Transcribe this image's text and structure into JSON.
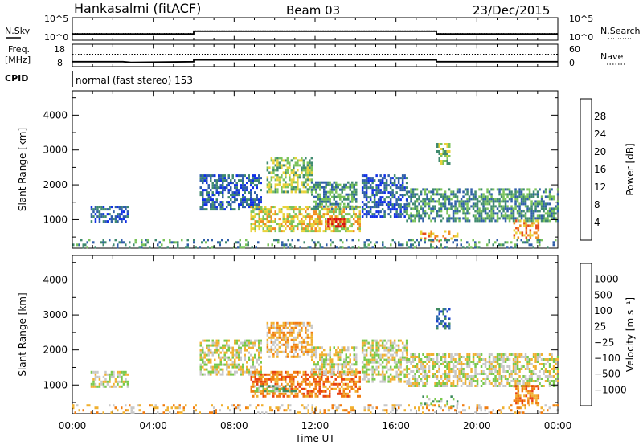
{
  "header": {
    "station": "Hankasalmi (fitACF)",
    "beam": "Beam 03",
    "date": "23/Dec/2015"
  },
  "chart_data": [
    {
      "type": "line",
      "panel": "noise",
      "left_label": "N.Sky",
      "right_label": "N.Search",
      "left_ticks": [
        "10^5",
        "10^0"
      ],
      "right_ticks": [
        "10^5",
        "10^0"
      ],
      "series": [
        {
          "name": "N.Sky",
          "style": "solid",
          "x": [
            0,
            6.0,
            6.0,
            18.0,
            18.0,
            24
          ],
          "y": [
            1.4,
            1.4,
            2.0,
            2.0,
            1.4,
            1.4
          ]
        },
        {
          "name": "N.Search",
          "style": "dotted",
          "x": [
            0,
            6.0,
            6.0,
            18.0,
            18.0,
            24
          ],
          "y": [
            1.5,
            1.5,
            2.1,
            2.1,
            1.5,
            1.5
          ]
        }
      ]
    },
    {
      "type": "line",
      "panel": "frequency",
      "left_label": "Freq.",
      "left_unit": "[MHz]",
      "right_label": "Nave",
      "left_ticks": [
        18,
        8
      ],
      "right_ticks": [
        60,
        0
      ],
      "left_range": [
        8,
        18
      ],
      "right_range": [
        0,
        60
      ],
      "series": [
        {
          "name": "Freq.",
          "style": "solid",
          "x": [
            0,
            2.5,
            2.9,
            6.0,
            6.0,
            18.0,
            18.0,
            24
          ],
          "y": [
            10.2,
            10.2,
            9.9,
            10.2,
            11.0,
            11.0,
            10.2,
            10.2
          ]
        },
        {
          "name": "Nave",
          "style": "dotted",
          "x": [
            0,
            24
          ],
          "y": [
            33,
            33
          ]
        }
      ]
    },
    {
      "type": "text",
      "panel": "cpid",
      "label": "CPID",
      "value": "normal (fast stereo) 153"
    },
    {
      "type": "heatmap",
      "panel": "power",
      "ylabel": "Slant Range [km]",
      "yticks": [
        1000,
        2000,
        3000,
        4000
      ],
      "ylim": [
        180,
        4700
      ],
      "xlim": [
        0,
        24
      ],
      "colorbar": {
        "label": "Power [dB]",
        "ticks": [
          "4",
          "8",
          "12",
          "16",
          "20",
          "24",
          "28"
        ],
        "colors": [
          "#0f2fe6",
          "#2f5ea8",
          "#3f8a6e",
          "#7ac35a",
          "#e8d23a",
          "#f08c20",
          "#e84a18",
          "#d81010"
        ]
      },
      "regions": [
        {
          "t": [
            0.9,
            2.7
          ],
          "r": [
            950,
            1400
          ],
          "v": 1
        },
        {
          "t": [
            6.3,
            9.3
          ],
          "r": [
            1300,
            2300
          ],
          "v": 1
        },
        {
          "t": [
            8.8,
            14.2
          ],
          "r": [
            700,
            1400
          ],
          "v": 4
        },
        {
          "t": [
            12.6,
            13.4
          ],
          "r": [
            800,
            1050
          ],
          "v": 7
        },
        {
          "t": [
            9.6,
            11.8
          ],
          "r": [
            1800,
            2800
          ],
          "v": 3
        },
        {
          "t": [
            11.8,
            14.0
          ],
          "r": [
            1300,
            2100
          ],
          "v": 2
        },
        {
          "t": [
            14.3,
            16.5
          ],
          "r": [
            1100,
            2300
          ],
          "v": 1
        },
        {
          "t": [
            16.5,
            24.0
          ],
          "r": [
            1000,
            1900
          ],
          "v": 2
        },
        {
          "t": [
            18.0,
            18.6
          ],
          "r": [
            2600,
            3200
          ],
          "v": 3
        },
        {
          "t": [
            17.2,
            19.0
          ],
          "r": [
            400,
            700
          ],
          "v": 5
        },
        {
          "t": [
            21.8,
            23.0
          ],
          "r": [
            500,
            1000
          ],
          "v": 5
        },
        {
          "t": [
            0.0,
            24.0
          ],
          "r": [
            200,
            450
          ],
          "v": 2
        }
      ]
    },
    {
      "type": "heatmap",
      "panel": "velocity",
      "ylabel": "Slant Range [km]",
      "yticks": [
        1000,
        2000,
        3000,
        4000
      ],
      "ylim": [
        180,
        4700
      ],
      "xlim": [
        0,
        24
      ],
      "xticks": [
        "00:00",
        "04:00",
        "08:00",
        "12:00",
        "16:00",
        "20:00",
        "00:00"
      ],
      "xlabel": "Time UT",
      "colorbar": {
        "label": "Velocity [m s⁻¹]",
        "ticks": [
          "1000",
          "500",
          "100",
          "25",
          "−25",
          "−100",
          "−500",
          "−1000"
        ],
        "colors": [
          "#1a3fc8",
          "#2f6ea8",
          "#3f8a5e",
          "#78c84a",
          "#c8c8c8",
          "#f0b030",
          "#f07c10",
          "#e84010",
          "#e01010"
        ]
      },
      "regions": [
        {
          "t": [
            0.9,
            2.7
          ],
          "r": [
            950,
            1400
          ],
          "v": 4
        },
        {
          "t": [
            6.3,
            9.3
          ],
          "r": [
            1300,
            2300
          ],
          "v": 4
        },
        {
          "t": [
            8.8,
            14.2
          ],
          "r": [
            700,
            1400
          ],
          "v": 6
        },
        {
          "t": [
            9.6,
            11.8
          ],
          "r": [
            1800,
            2800
          ],
          "v": 5
        },
        {
          "t": [
            9.0,
            11.0
          ],
          "r": [
            800,
            1000
          ],
          "v": 3
        },
        {
          "t": [
            11.8,
            14.0
          ],
          "r": [
            1300,
            2100
          ],
          "v": 4
        },
        {
          "t": [
            14.3,
            16.5
          ],
          "r": [
            1100,
            2300
          ],
          "v": 4
        },
        {
          "t": [
            16.5,
            24.0
          ],
          "r": [
            1000,
            1900
          ],
          "v": 4
        },
        {
          "t": [
            18.0,
            18.6
          ],
          "r": [
            2600,
            3200
          ],
          "v": 1
        },
        {
          "t": [
            17.2,
            19.0
          ],
          "r": [
            400,
            700
          ],
          "v": 3
        },
        {
          "t": [
            21.8,
            23.0
          ],
          "r": [
            500,
            1000
          ],
          "v": 6
        },
        {
          "t": [
            0.0,
            24.0
          ],
          "r": [
            200,
            450
          ],
          "v": 5
        }
      ]
    }
  ]
}
